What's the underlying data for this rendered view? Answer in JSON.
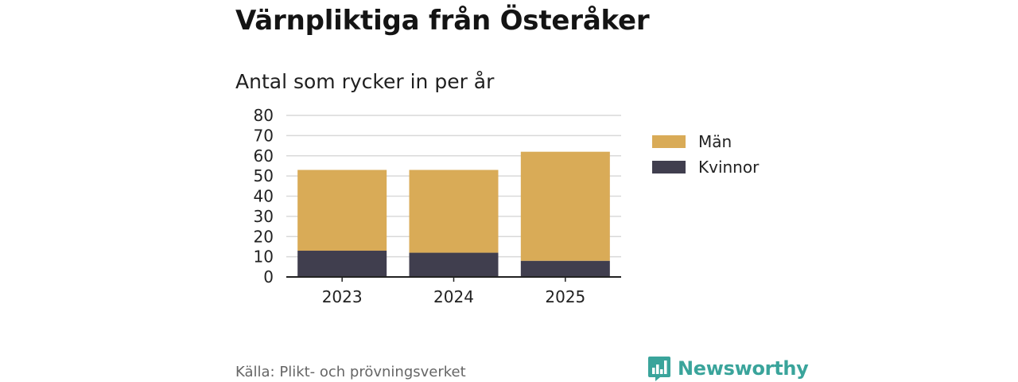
{
  "header": {
    "title": "Värnpliktiga från Österåker",
    "subtitle": "Antal som rycker in per år"
  },
  "colors": {
    "men": "#d9ab57",
    "women": "#403e4e",
    "grid": "#d9d9d9",
    "brand": "#3aa49b"
  },
  "chart_data": {
    "type": "bar",
    "stacked": true,
    "title": "Antal som rycker in per år",
    "categories": [
      "2023",
      "2024",
      "2025"
    ],
    "series": [
      {
        "name": "Kvinnor",
        "values": [
          13,
          12,
          8
        ]
      },
      {
        "name": "Män",
        "values": [
          40,
          41,
          54
        ]
      }
    ],
    "ylim": [
      0,
      80
    ],
    "yticks": [
      "0",
      "10",
      "20",
      "30",
      "40",
      "50",
      "60",
      "70",
      "80"
    ],
    "xlabel": "",
    "ylabel": "",
    "grid": true,
    "legend_position": "right"
  },
  "legend": {
    "items": [
      {
        "label": "Män",
        "color": "#d9ab57"
      },
      {
        "label": "Kvinnor",
        "color": "#403e4e"
      }
    ]
  },
  "footer": {
    "source": "Källa: Plikt- och prövningsverket",
    "brand": "Newsworthy"
  }
}
